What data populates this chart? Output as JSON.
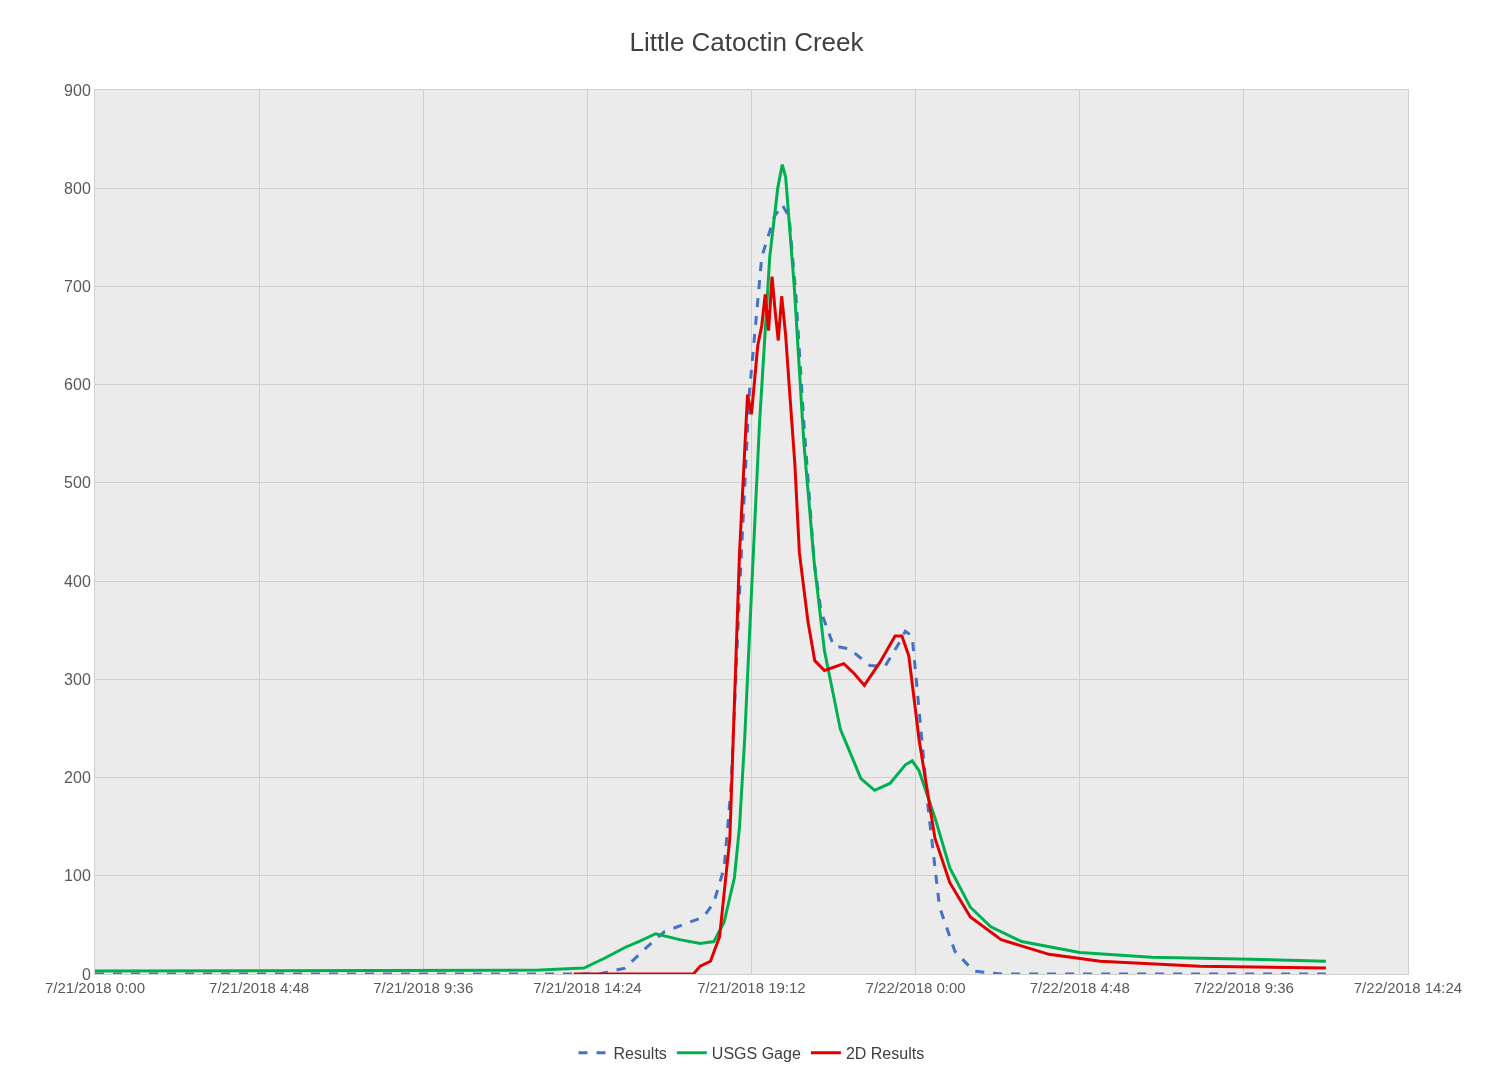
{
  "chart_data": {
    "type": "line",
    "title": "Little Catoctin Creek",
    "xlim": [
      "2018-07-21T00:00",
      "2018-07-22T14:24"
    ],
    "xticks": [
      {
        "value": "2018-07-21T00:00",
        "label": "7/21/2018 0:00"
      },
      {
        "value": "2018-07-21T04:48",
        "label": "7/21/2018 4:48"
      },
      {
        "value": "2018-07-21T09:36",
        "label": "7/21/2018 9:36"
      },
      {
        "value": "2018-07-21T14:24",
        "label": "7/21/2018 14:24"
      },
      {
        "value": "2018-07-21T19:12",
        "label": "7/21/2018 19:12"
      },
      {
        "value": "2018-07-22T00:00",
        "label": "7/22/2018 0:00"
      },
      {
        "value": "2018-07-22T04:48",
        "label": "7/22/2018 4:48"
      },
      {
        "value": "2018-07-22T09:36",
        "label": "7/22/2018 9:36"
      },
      {
        "value": "2018-07-22T14:24",
        "label": "7/22/2018 14:24"
      }
    ],
    "ylim": [
      0,
      900
    ],
    "yticks": [
      0,
      100,
      200,
      300,
      400,
      500,
      600,
      700,
      800,
      900
    ],
    "grid": true,
    "legend": "bottom",
    "series": [
      {
        "name": "Results",
        "color": "#4472c4",
        "line_style": "dashed",
        "x": [
          "2018-07-21T00:00",
          "2018-07-21T14:45",
          "2018-07-21T15:30",
          "2018-07-21T16:06",
          "2018-07-21T16:39",
          "2018-07-21T17:24",
          "2018-07-21T17:48",
          "2018-07-21T18:06",
          "2018-07-21T18:24",
          "2018-07-21T18:36",
          "2018-07-21T18:51",
          "2018-07-21T19:08",
          "2018-07-21T19:30",
          "2018-07-21T19:52",
          "2018-07-21T20:06",
          "2018-07-21T20:18",
          "2018-07-21T20:30",
          "2018-07-21T20:44",
          "2018-07-21T21:02",
          "2018-07-21T21:14",
          "2018-07-21T21:36",
          "2018-07-21T22:04",
          "2018-07-21T22:40",
          "2018-07-21T23:06",
          "2018-07-21T23:30",
          "2018-07-21T23:42",
          "2018-07-21T23:54",
          "2018-07-22T00:06",
          "2018-07-22T00:22",
          "2018-07-22T00:42",
          "2018-07-22T01:09",
          "2018-07-22T01:42",
          "2018-07-22T02:30",
          "2018-07-22T12:00"
        ],
        "values": [
          0,
          0,
          6,
          26,
          43,
          53,
          58,
          73,
          108,
          189,
          389,
          590,
          730,
          771,
          783,
          771,
          690,
          560,
          419,
          369,
          334,
          331,
          314,
          313,
          336,
          349,
          344,
          269,
          169,
          68,
          23,
          3,
          0,
          0
        ]
      },
      {
        "name": "USGS Gage",
        "color": "#00b050",
        "line_style": "solid",
        "x": [
          "2018-07-21T00:00",
          "2018-07-21T13:00",
          "2018-07-21T14:18",
          "2018-07-21T14:54",
          "2018-07-21T15:30",
          "2018-07-21T15:54",
          "2018-07-21T16:24",
          "2018-07-21T17:06",
          "2018-07-21T17:42",
          "2018-07-21T18:06",
          "2018-07-21T18:24",
          "2018-07-21T18:42",
          "2018-07-21T18:51",
          "2018-07-21T19:00",
          "2018-07-21T19:12",
          "2018-07-21T19:26",
          "2018-07-21T19:44",
          "2018-07-21T19:58",
          "2018-07-21T20:06",
          "2018-07-21T20:12",
          "2018-07-21T20:27",
          "2018-07-21T20:44",
          "2018-07-21T21:02",
          "2018-07-21T21:20",
          "2018-07-21T21:48",
          "2018-07-21T22:24",
          "2018-07-21T22:48",
          "2018-07-21T23:15",
          "2018-07-21T23:42",
          "2018-07-21T23:54",
          "2018-07-22T00:06",
          "2018-07-22T00:34",
          "2018-07-22T01:00",
          "2018-07-22T01:36",
          "2018-07-22T02:12",
          "2018-07-22T03:06",
          "2018-07-22T04:48",
          "2018-07-22T06:54",
          "2018-07-22T09:48",
          "2018-07-22T12:00"
        ],
        "values": [
          3,
          4,
          6,
          16,
          27,
          33,
          41,
          35,
          31,
          33,
          53,
          98,
          150,
          239,
          389,
          560,
          730,
          800,
          824,
          811,
          700,
          540,
          419,
          329,
          249,
          199,
          187,
          194,
          213,
          217,
          207,
          159,
          108,
          68,
          48,
          33,
          22,
          17,
          15,
          13
        ]
      },
      {
        "name": "2D Results",
        "color": "#e00000",
        "line_style": "solid",
        "x": [
          "2018-07-21T14:00",
          "2018-07-21T17:30",
          "2018-07-21T17:42",
          "2018-07-21T18:00",
          "2018-07-21T18:16",
          "2018-07-21T18:34",
          "2018-07-21T18:51",
          "2018-07-21T19:05",
          "2018-07-21T19:12",
          "2018-07-21T19:23",
          "2018-07-21T19:30",
          "2018-07-21T19:36",
          "2018-07-21T19:42",
          "2018-07-21T19:48",
          "2018-07-21T19:54",
          "2018-07-21T19:59",
          "2018-07-21T20:05",
          "2018-07-21T20:12",
          "2018-07-21T20:18",
          "2018-07-21T20:28",
          "2018-07-21T20:36",
          "2018-07-21T20:51",
          "2018-07-21T21:03",
          "2018-07-21T21:20",
          "2018-07-21T21:54",
          "2018-07-21T22:12",
          "2018-07-21T22:30",
          "2018-07-21T22:57",
          "2018-07-21T23:24",
          "2018-07-21T23:36",
          "2018-07-21T23:48",
          "2018-07-22T00:06",
          "2018-07-22T00:34",
          "2018-07-22T01:00",
          "2018-07-22T01:36",
          "2018-07-22T02:30",
          "2018-07-22T03:54",
          "2018-07-22T05:24",
          "2018-07-22T08:18",
          "2018-07-22T12:00"
        ],
        "values": [
          0,
          0,
          8,
          13,
          38,
          138,
          429,
          590,
          570,
          640,
          660,
          692,
          655,
          710,
          672,
          645,
          690,
          650,
          600,
          520,
          429,
          359,
          319,
          309,
          316,
          306,
          294,
          317,
          344,
          344,
          324,
          239,
          138,
          93,
          58,
          35,
          20,
          13,
          8,
          6
        ]
      }
    ]
  }
}
